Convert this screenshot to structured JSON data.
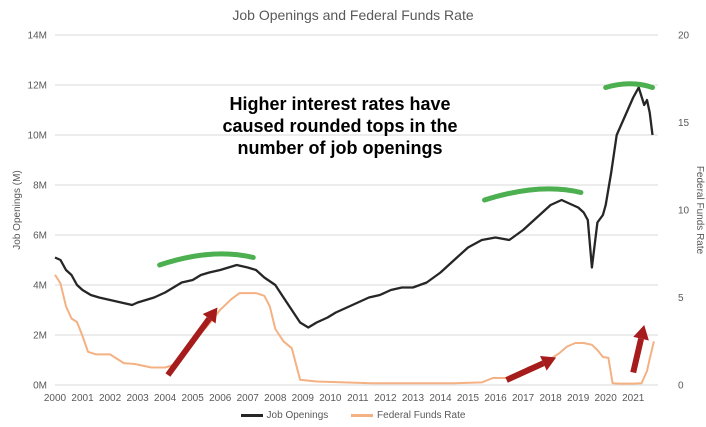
{
  "chart_data": {
    "type": "line",
    "title": "Job Openings and Federal Funds Rate",
    "ylabel": "Job Openings (M)",
    "y2label": "Federal Funds Rate",
    "annotation": "Higher interest rates have caused rounded tops in the number of job openings",
    "x_ticks": [
      "2000",
      "2001",
      "2002",
      "2003",
      "2004",
      "2005",
      "2006",
      "2007",
      "2008",
      "2009",
      "2010",
      "2011",
      "2012",
      "2013",
      "2014",
      "2015",
      "2016",
      "2017",
      "2018",
      "2019",
      "2020",
      "2021"
    ],
    "y_ticks": [
      "0M",
      "2M",
      "4M",
      "6M",
      "8M",
      "10M",
      "12M",
      "14M"
    ],
    "y2_ticks": [
      "0",
      "5",
      "10",
      "15",
      "20"
    ],
    "xlim": [
      2000,
      2021.9
    ],
    "ylim": [
      0,
      14
    ],
    "y2lim": [
      0,
      20
    ],
    "legend_position": "bottom",
    "series": [
      {
        "name": "Job Openings",
        "axis": "left",
        "color": "#262626",
        "x": [
          2000.0,
          2000.2,
          2000.4,
          2000.6,
          2000.8,
          2001.0,
          2001.3,
          2001.6,
          2002.0,
          2002.4,
          2002.8,
          2003.0,
          2003.3,
          2003.6,
          2004.0,
          2004.3,
          2004.6,
          2005.0,
          2005.3,
          2005.6,
          2006.0,
          2006.3,
          2006.6,
          2007.0,
          2007.3,
          2007.6,
          2008.0,
          2008.3,
          2008.6,
          2008.9,
          2009.2,
          2009.5,
          2009.9,
          2010.2,
          2010.6,
          2011.0,
          2011.4,
          2011.8,
          2012.2,
          2012.6,
          2013.0,
          2013.5,
          2014.0,
          2014.5,
          2015.0,
          2015.5,
          2016.0,
          2016.5,
          2017.0,
          2017.4,
          2017.8,
          2018.0,
          2018.4,
          2018.8,
          2019.0,
          2019.2,
          2019.35,
          2019.5,
          2019.7,
          2019.9,
          2020.0,
          2020.2,
          2020.4,
          2020.6,
          2020.8,
          2021.0,
          2021.2,
          2021.4,
          2021.5,
          2021.6,
          2021.7
        ],
        "values": [
          5.1,
          5.0,
          4.6,
          4.4,
          4.0,
          3.8,
          3.6,
          3.5,
          3.4,
          3.3,
          3.2,
          3.3,
          3.4,
          3.5,
          3.7,
          3.9,
          4.1,
          4.2,
          4.4,
          4.5,
          4.6,
          4.7,
          4.8,
          4.7,
          4.6,
          4.3,
          4.0,
          3.5,
          3.0,
          2.5,
          2.3,
          2.5,
          2.7,
          2.9,
          3.1,
          3.3,
          3.5,
          3.6,
          3.8,
          3.9,
          3.9,
          4.1,
          4.5,
          5.0,
          5.5,
          5.8,
          5.9,
          5.8,
          6.2,
          6.6,
          7.0,
          7.2,
          7.4,
          7.2,
          7.1,
          6.9,
          6.6,
          4.7,
          6.5,
          6.8,
          7.2,
          8.5,
          10.0,
          10.5,
          11.0,
          11.5,
          11.9,
          11.2,
          11.4,
          10.9,
          10.0
        ]
      },
      {
        "name": "Federal Funds Rate",
        "axis": "right",
        "color": "#f4b183",
        "x": [
          2000.0,
          2000.2,
          2000.4,
          2000.6,
          2000.8,
          2001.0,
          2001.2,
          2001.5,
          2001.8,
          2002.0,
          2002.5,
          2002.9,
          2003.5,
          2004.0,
          2004.4,
          2004.8,
          2005.2,
          2005.6,
          2006.0,
          2006.4,
          2006.7,
          2007.3,
          2007.6,
          2007.8,
          2008.0,
          2008.3,
          2008.6,
          2008.9,
          2009.5,
          2010.5,
          2011.5,
          2012.5,
          2013.5,
          2014.5,
          2015.5,
          2015.9,
          2016.5,
          2016.9,
          2017.2,
          2017.5,
          2017.8,
          2018.0,
          2018.3,
          2018.6,
          2018.9,
          2019.2,
          2019.5,
          2019.7,
          2019.9,
          2020.1,
          2020.25,
          2020.5,
          2021.0,
          2021.3,
          2021.5,
          2021.6,
          2021.75
        ],
        "values": [
          6.3,
          5.8,
          4.5,
          3.8,
          3.6,
          2.8,
          1.9,
          1.75,
          1.75,
          1.75,
          1.25,
          1.2,
          1.0,
          1.0,
          1.2,
          2.0,
          2.8,
          3.5,
          4.3,
          4.9,
          5.25,
          5.25,
          5.1,
          4.5,
          3.2,
          2.5,
          2.1,
          0.3,
          0.2,
          0.15,
          0.1,
          0.1,
          0.1,
          0.1,
          0.15,
          0.4,
          0.4,
          0.7,
          1.0,
          1.15,
          1.3,
          1.5,
          1.8,
          2.2,
          2.4,
          2.4,
          2.3,
          2.0,
          1.6,
          1.55,
          0.1,
          0.08,
          0.08,
          0.1,
          0.8,
          1.5,
          2.5
        ]
      }
    ]
  },
  "annotation_marks": {
    "green_arc_color": "#4caf50",
    "arrow_color": "#a61c1c"
  },
  "legend": {
    "job_openings_label": "Job Openings",
    "fed_funds_label": "Federal Funds Rate"
  }
}
